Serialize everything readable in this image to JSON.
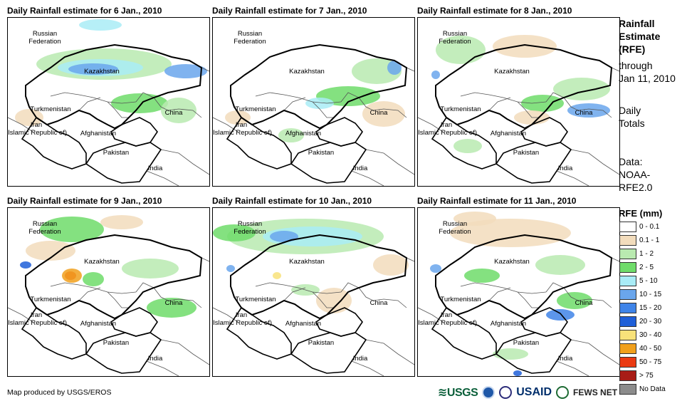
{
  "panels": [
    {
      "title": "Daily Rainfall estimate for 6 Jan., 2010"
    },
    {
      "title": "Daily Rainfall estimate for 7 Jan., 2010"
    },
    {
      "title": "Daily Rainfall estimate for 8 Jan., 2010"
    },
    {
      "title": "Daily Rainfall estimate for 9 Jan., 2010"
    },
    {
      "title": "Daily Rainfall estimate for 10 Jan., 2010"
    },
    {
      "title": "Daily Rainfall estimate for 11 Jan., 2010"
    }
  ],
  "map_labels": {
    "russia": "Russian\nFederation",
    "kazakhstan": "Kazakhstan",
    "turkmenistan": "Turkmenistan",
    "china": "China",
    "iran": "Iran\n(Islamic Republic of)",
    "afghanistan": "Afghanistan",
    "pakistan": "Pakistan",
    "india": "India"
  },
  "sidebar": {
    "title": "Rainfall\nEstimate\n(RFE)",
    "through": "through\nJan 11, 2010",
    "totals": "Daily\nTotals",
    "data": "Data:\nNOAA-\nRFE2.0"
  },
  "legend": {
    "title": "RFE (mm)",
    "items": [
      {
        "label": "0 - 0.1",
        "color": "#ffffff"
      },
      {
        "label": "0.1 - 1",
        "color": "#f2dcbc"
      },
      {
        "label": "1 - 2",
        "color": "#b9eab0"
      },
      {
        "label": "2 - 5",
        "color": "#6fdc6a"
      },
      {
        "label": "5 - 10",
        "color": "#a9ecf6"
      },
      {
        "label": "10 - 15",
        "color": "#6aa6ec"
      },
      {
        "label": "15 - 20",
        "color": "#3f84e8"
      },
      {
        "label": "20 - 30",
        "color": "#1f5fd8"
      },
      {
        "label": "30 - 40",
        "color": "#f8e27a"
      },
      {
        "label": "40 - 50",
        "color": "#f1a01c"
      },
      {
        "label": "50 - 75",
        "color": "#ea3a12"
      },
      {
        "label": "> 75",
        "color": "#a81c16"
      },
      {
        "label": "No Data",
        "color": "#8c8c8c"
      }
    ]
  },
  "footer": {
    "credit": "Map produced by USGS/EROS"
  },
  "logos": {
    "usgs": "≋USGS",
    "usaid": "USAID",
    "fews": "FEWS NET"
  }
}
